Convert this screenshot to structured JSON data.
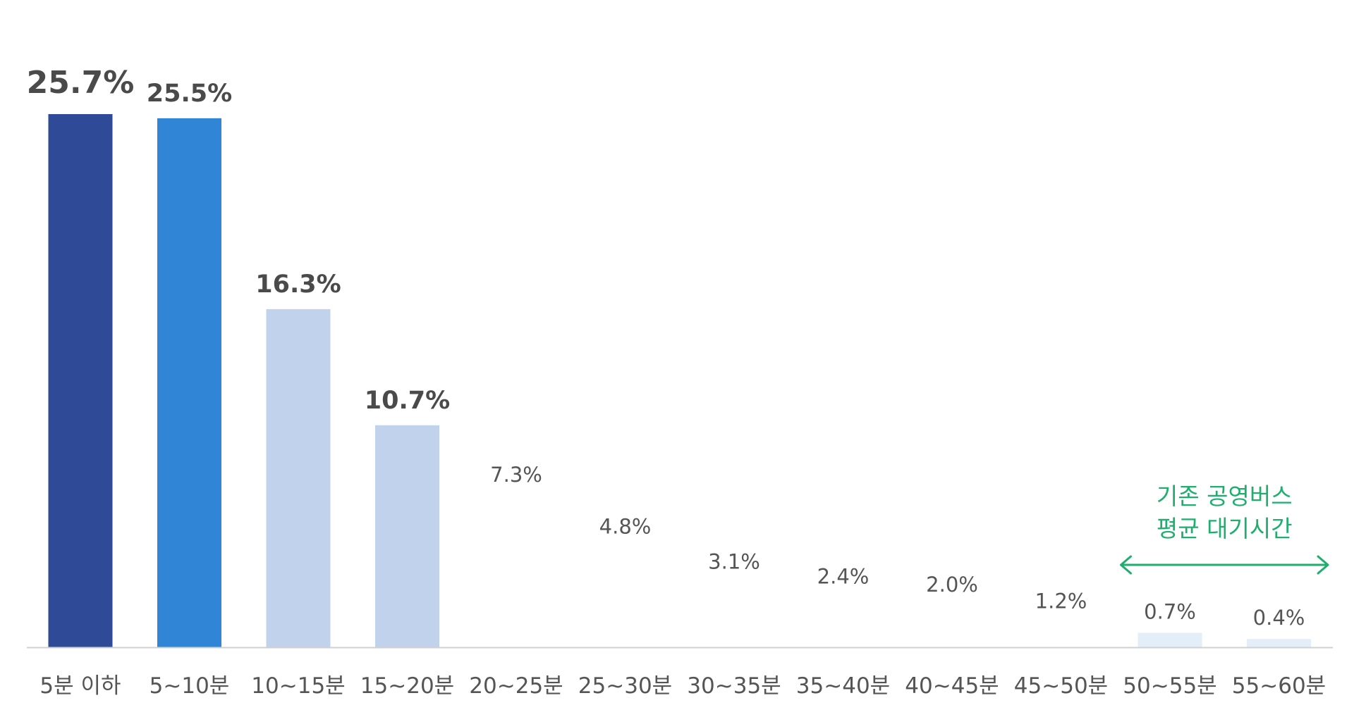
{
  "chart_data": {
    "type": "bar",
    "title": "",
    "xlabel": "",
    "ylabel": "",
    "ylim": [
      0,
      25.7
    ],
    "grid": false,
    "categories": [
      "5분 이하",
      "5~10분",
      "10~15분",
      "15~20분",
      "20~25분",
      "25~30분",
      "30~35분",
      "35~40분",
      "40~45분",
      "45~50분",
      "50~55분",
      "55~60분"
    ],
    "values": [
      25.7,
      25.5,
      16.3,
      10.7,
      7.3,
      4.8,
      3.1,
      2.4,
      2.0,
      1.2,
      0.7,
      0.4
    ],
    "value_labels": [
      "25.7%",
      "25.5%",
      "16.3%",
      "10.7%",
      "7.3%",
      "4.8%",
      "3.1%",
      "2.4%",
      "2.0%",
      "1.2%",
      "0.7%",
      "0.4%"
    ],
    "bar_colors": [
      "#2f4b98",
      "#3185d6",
      "#c1d3ec",
      "#c1d3ec",
      "#ffffff",
      "#ffffff",
      "#ffffff",
      "#ffffff",
      "#ffffff",
      "#ffffff",
      "#e3eef8",
      "#e3eef8"
    ],
    "label_colors": [
      "#2f4b98",
      "#4a4a4a",
      "#4a4a4a",
      "#4a4a4a",
      "#555555",
      "#555555",
      "#555555",
      "#555555",
      "#555555",
      "#555555",
      "#555555",
      "#555555"
    ],
    "bold_labels": [
      true,
      true,
      true,
      true,
      false,
      false,
      false,
      false,
      false,
      false,
      false,
      false
    ],
    "annotation": {
      "lines": [
        "기존 공영버스",
        "평균 대기시간"
      ],
      "color": "#1fae6e",
      "span": [
        "50~55분",
        "55~60분"
      ],
      "arrow": "double"
    },
    "axis_color": "#d0d0d0"
  }
}
